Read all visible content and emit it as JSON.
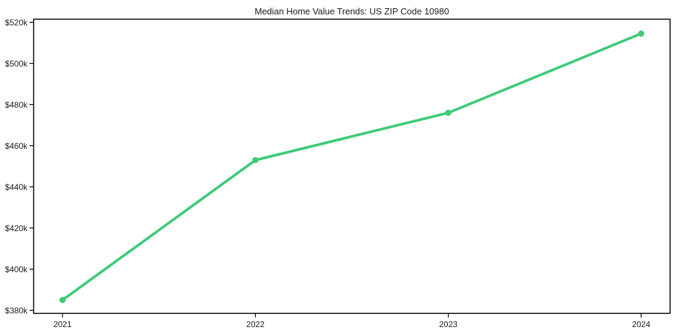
{
  "page": {
    "background_color": "#ffffff"
  },
  "chart_data": {
    "type": "line",
    "title": "Median Home Value Trends: US ZIP Code 10980",
    "series": [
      {
        "name": "Median Home Value",
        "x": [
          2021,
          2022,
          2023,
          2024
        ],
        "values": [
          385000,
          453000,
          476000,
          514500
        ]
      }
    ],
    "x_tick_labels": [
      "2021",
      "2022",
      "2023",
      "2024"
    ],
    "y_ticks": [
      380000,
      400000,
      420000,
      440000,
      460000,
      480000,
      500000,
      520000
    ],
    "y_tick_labels": [
      "$380k",
      "$400k",
      "$420k",
      "$440k",
      "$460k",
      "$480k",
      "$500k",
      "$520k"
    ],
    "xlim": [
      2020.85,
      2024.15
    ],
    "ylim": [
      378500,
      521500
    ],
    "grid": false,
    "legend_position": "none",
    "line_color": "#3dcb78",
    "marker": "circle",
    "marker_radius": 4.5,
    "line_width": 3.8,
    "axis_color": "#000000",
    "text_color": "#1a1a1a"
  }
}
